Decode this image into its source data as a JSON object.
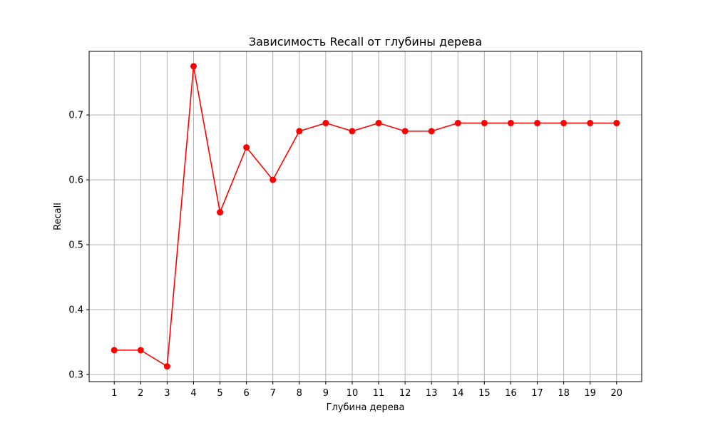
{
  "chart_data": {
    "type": "line",
    "title": "Зависимость Recall от глубины дерева",
    "xlabel": "Глубина дерева",
    "ylabel": "Recall",
    "x": [
      1,
      2,
      3,
      4,
      5,
      6,
      7,
      8,
      9,
      10,
      11,
      12,
      13,
      14,
      15,
      16,
      17,
      18,
      19,
      20
    ],
    "series": [
      {
        "values": [
          0.3375,
          0.3375,
          0.3125,
          0.775,
          0.55,
          0.65,
          0.6,
          0.675,
          0.6875,
          0.675,
          0.6875,
          0.675,
          0.675,
          0.6875,
          0.6875,
          0.6875,
          0.6875,
          0.6875,
          0.6875,
          0.6875
        ],
        "color": "#ff0000",
        "marker": "circle"
      }
    ],
    "xlim": [
      0.05,
      20.95
    ],
    "ylim": [
      0.289,
      0.798
    ],
    "xticks": [
      1,
      2,
      3,
      4,
      5,
      6,
      7,
      8,
      9,
      10,
      11,
      12,
      13,
      14,
      15,
      16,
      17,
      18,
      19,
      20
    ],
    "yticks": [
      0.3,
      0.4,
      0.5,
      0.6,
      0.7
    ],
    "ytick_labels": [
      "0.3",
      "0.4",
      "0.5",
      "0.6",
      "0.7"
    ],
    "grid": true,
    "grid_color": "#b0b0b0"
  }
}
